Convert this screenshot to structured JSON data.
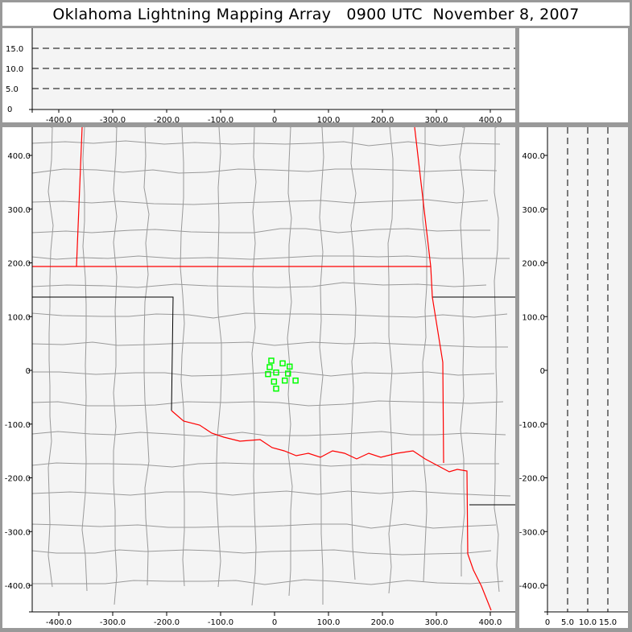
{
  "title": "Oklahoma Lightning Mapping Array   0900 UTC  November 8, 2007",
  "colors": {
    "state_border": "#ff0000",
    "county_border": "#999999",
    "source_marker": "#00ff00",
    "background": "#f4f4f4",
    "frame": "#999999"
  },
  "x_ticks": [
    "-400.0",
    "-300.0",
    "-200.0",
    "-100.0",
    "0",
    "100.0",
    "200.0",
    "300.0",
    "400.0"
  ],
  "y_ticks": [
    "400.0",
    "300.0",
    "200.0",
    "100.0",
    "0",
    "-100.0",
    "-200.0",
    "-300.0",
    "-400.0"
  ],
  "alt_ticks": [
    "0",
    "5.0",
    "10.0",
    "15.0"
  ],
  "sources": [
    {
      "x": -6,
      "y": 18
    },
    {
      "x": 15,
      "y": 13
    },
    {
      "x": 28,
      "y": 7
    },
    {
      "x": -9,
      "y": 6
    },
    {
      "x": 3,
      "y": -4
    },
    {
      "x": -12,
      "y": -7
    },
    {
      "x": 25,
      "y": -6
    },
    {
      "x": 19,
      "y": -19
    },
    {
      "x": 39,
      "y": -19
    },
    {
      "x": -1,
      "y": -21
    },
    {
      "x": 3,
      "y": -34
    }
  ]
}
